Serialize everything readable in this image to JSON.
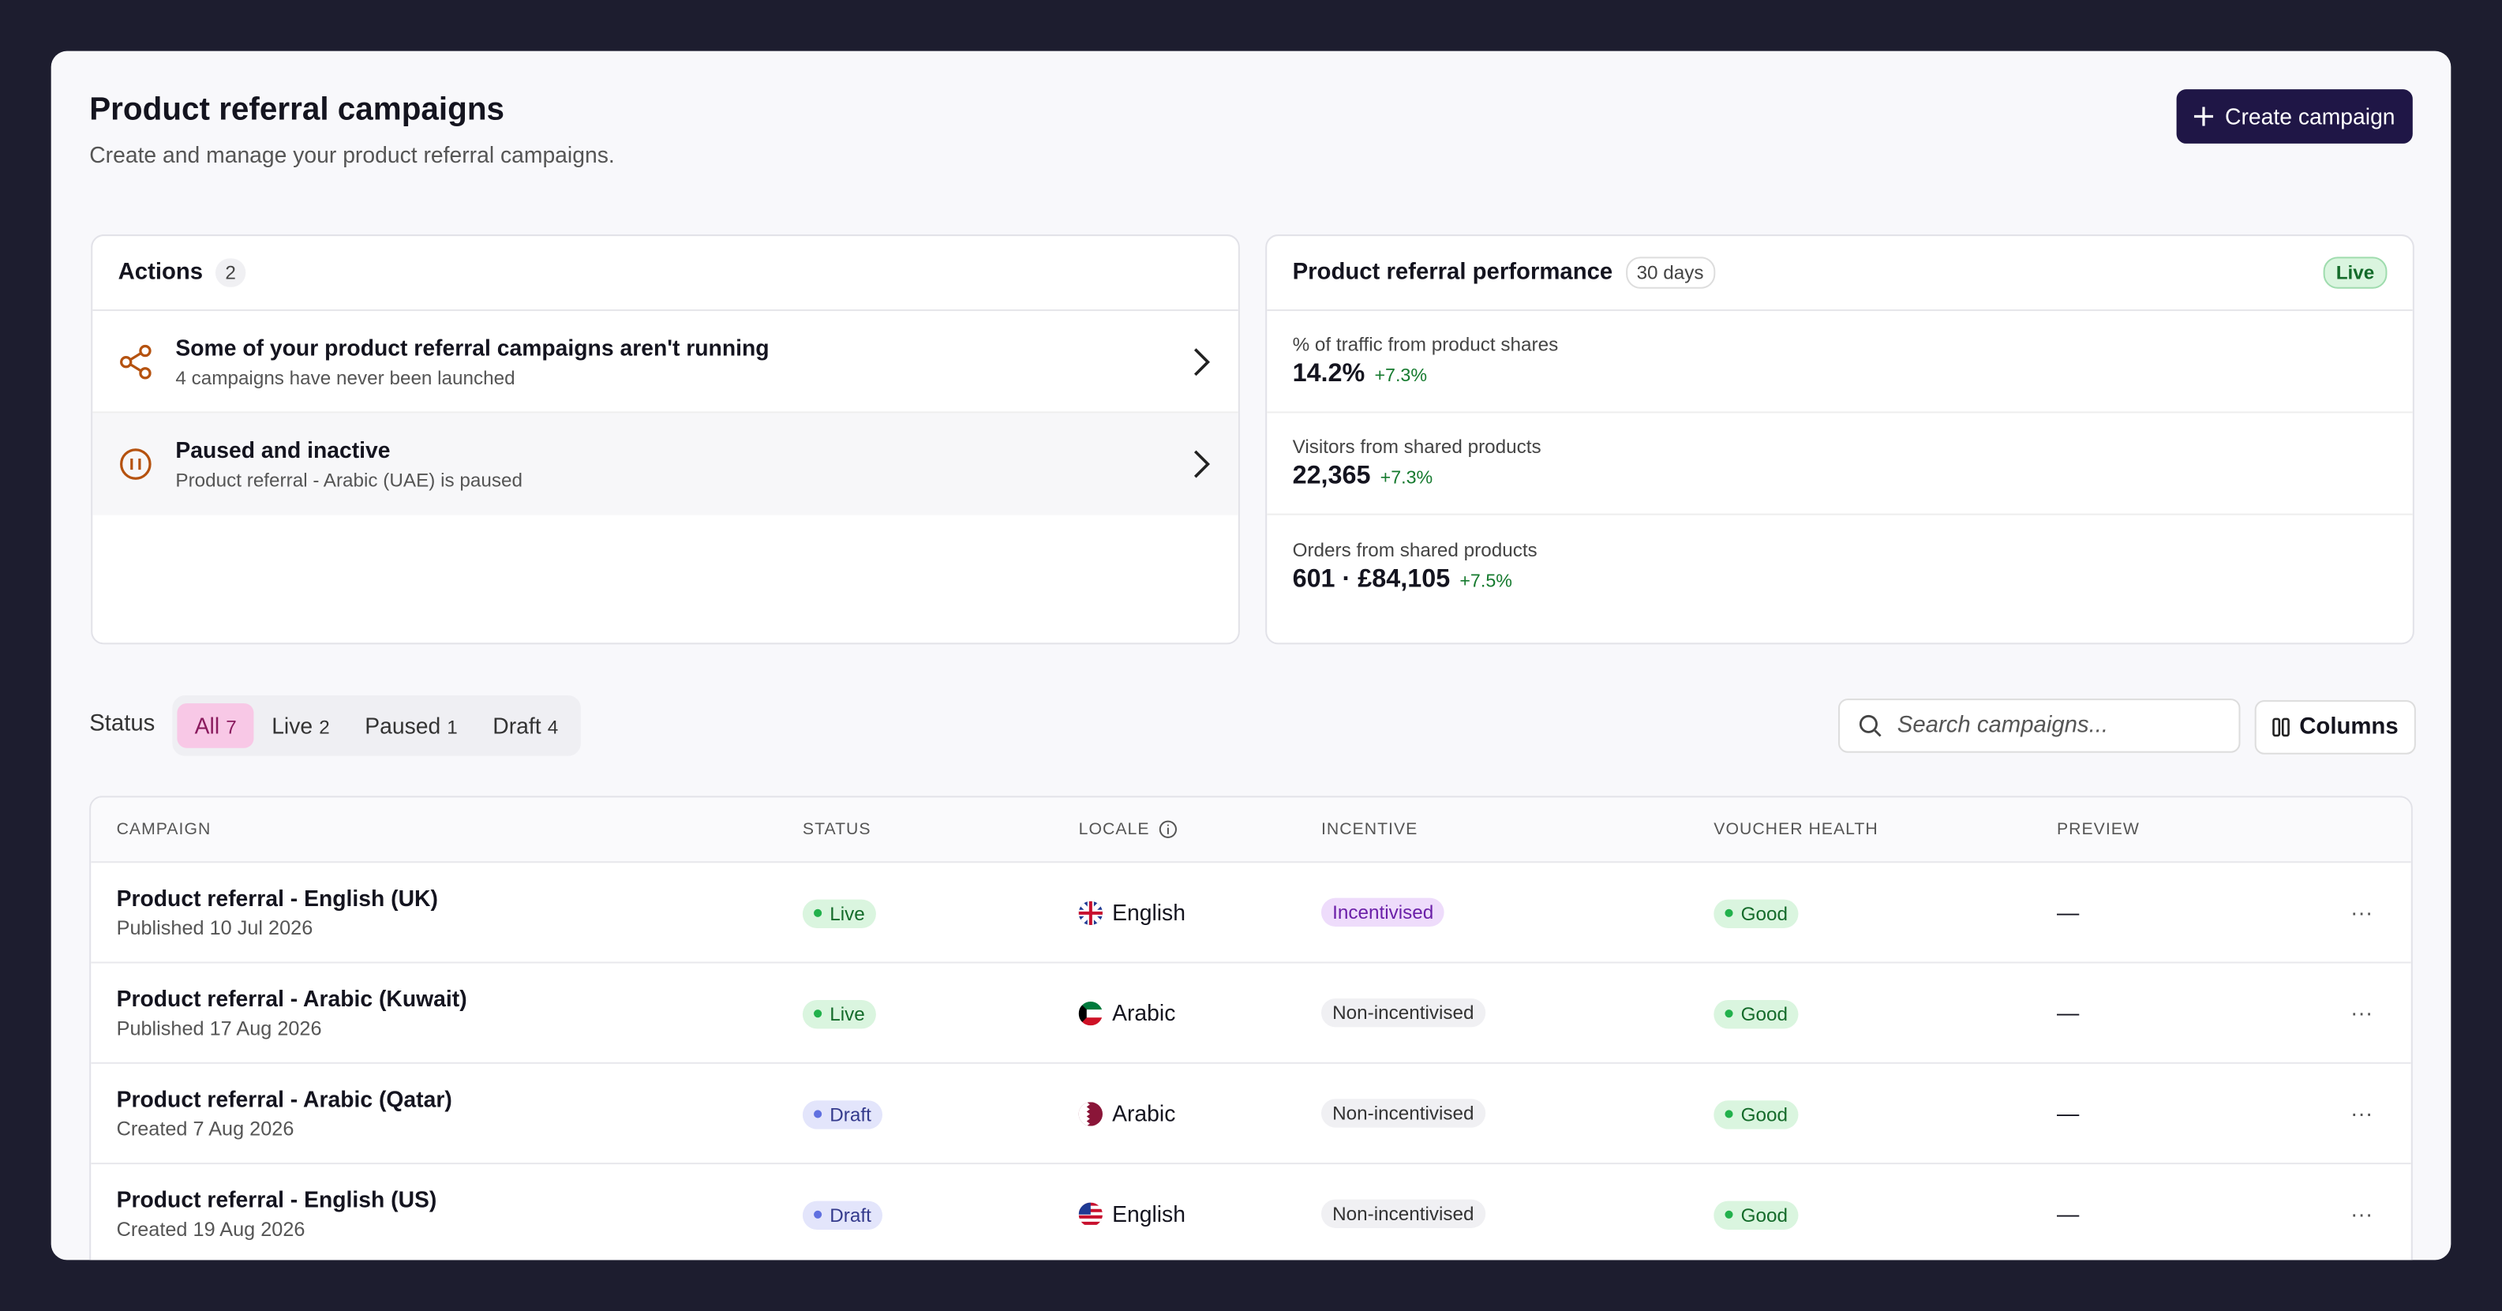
{
  "header": {
    "title": "Product referral campaigns",
    "subtitle": "Create and manage your product referral campaigns.",
    "create_button": "Create campaign"
  },
  "actions": {
    "title": "Actions",
    "count": 2,
    "items": [
      {
        "title": "Some of your product referral campaigns aren't running",
        "subtitle": "4 campaigns have never been launched"
      },
      {
        "title": "Paused and inactive",
        "subtitle": "Product referral - Arabic (UAE) is paused"
      }
    ]
  },
  "performance": {
    "title": "Product referral performance",
    "period": "30 days",
    "status": "Live",
    "metrics": [
      {
        "label": "% of traffic from product shares",
        "value": "14.2%",
        "change": "+7.3%"
      },
      {
        "label": "Visitors from shared products",
        "value": "22,365",
        "change": "+7.3%"
      },
      {
        "label": "Orders from shared products",
        "value": "601 · £84,105",
        "change": "+7.5%"
      }
    ]
  },
  "filters": {
    "label": "Status",
    "tabs": [
      {
        "label": "All",
        "count": 7
      },
      {
        "label": "Live",
        "count": 2
      },
      {
        "label": "Paused",
        "count": 1
      },
      {
        "label": "Draft",
        "count": 4
      }
    ],
    "search_placeholder": "Search campaigns...",
    "columns_button": "Columns"
  },
  "table": {
    "columns": [
      "CAMPAIGN",
      "STATUS",
      "LOCALE",
      "INCENTIVE",
      "VOUCHER HEALTH",
      "PREVIEW"
    ],
    "rows": [
      {
        "campaign": "Product referral - English (UK)",
        "date": "Published 10 Jul 2026",
        "status": "Live",
        "locale": "English",
        "incentive": "Incentivised",
        "voucher_health": "Good",
        "preview": "—"
      },
      {
        "campaign": "Product referral - Arabic (Kuwait)",
        "date": "Published 17 Aug 2026",
        "status": "Live",
        "locale": "Arabic",
        "incentive": "Non-incentivised",
        "voucher_health": "Good",
        "preview": "—"
      },
      {
        "campaign": "Product referral - Arabic (Qatar)",
        "date": "Created 7 Aug 2026",
        "status": "Draft",
        "locale": "Arabic",
        "incentive": "Non-incentivised",
        "voucher_health": "Good",
        "preview": "—"
      },
      {
        "campaign": "Product referral - English (US)",
        "date": "Created 19 Aug 2026",
        "status": "Draft",
        "locale": "English",
        "incentive": "Non-incentivised",
        "voucher_health": "Good",
        "preview": "—"
      }
    ]
  }
}
